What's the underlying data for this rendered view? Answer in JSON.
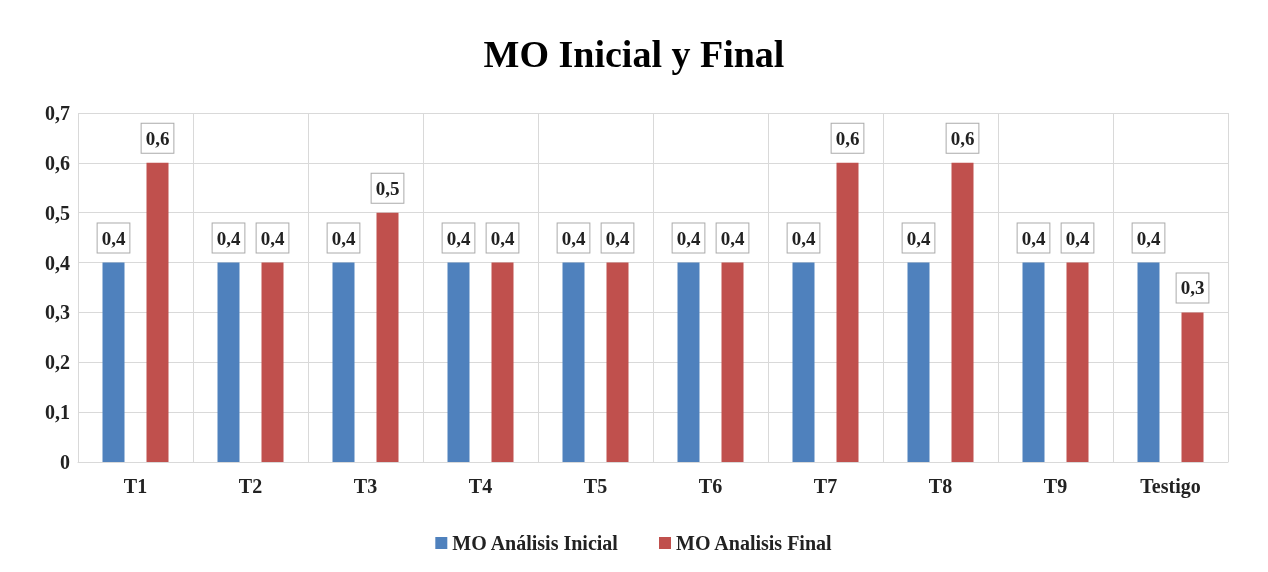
{
  "chart_data": {
    "type": "bar",
    "title": "MO Inicial y Final",
    "categories": [
      "T1",
      "T2",
      "T3",
      "T4",
      "T5",
      "T6",
      "T7",
      "T8",
      "T9",
      "Testigo"
    ],
    "series": [
      {
        "name": "MO Análisis Inicial",
        "color": "#4f81bd",
        "values": [
          0.4,
          0.4,
          0.4,
          0.4,
          0.4,
          0.4,
          0.4,
          0.4,
          0.4,
          0.4
        ],
        "value_labels": [
          "0,4",
          "0,4",
          "0,4",
          "0,4",
          "0,4",
          "0,4",
          "0,4",
          "0,4",
          "0,4",
          "0,4"
        ]
      },
      {
        "name": "MO Analisis Final",
        "color": "#c0504d",
        "values": [
          0.6,
          0.4,
          0.5,
          0.4,
          0.4,
          0.4,
          0.6,
          0.6,
          0.4,
          0.3
        ],
        "value_labels": [
          "0,6",
          "0,4",
          "0,5",
          "0,4",
          "0,4",
          "0,4",
          "0,6",
          "0,6",
          "0,4",
          "0,3"
        ]
      }
    ],
    "ylim": [
      0,
      0.7
    ],
    "yticks": [
      0,
      {
        "value": 0.1,
        "label": "0,1"
      },
      {
        "value": 0.2,
        "label": "0,2"
      },
      {
        "value": 0.3,
        "label": "0,3"
      },
      {
        "value": 0.4,
        "label": "0,4"
      },
      {
        "value": 0.5,
        "label": "0,5"
      },
      {
        "value": 0.6,
        "label": "0,6"
      },
      {
        "value": 0.7,
        "label": "0,7"
      }
    ],
    "grid": true,
    "legend": "bottom"
  }
}
